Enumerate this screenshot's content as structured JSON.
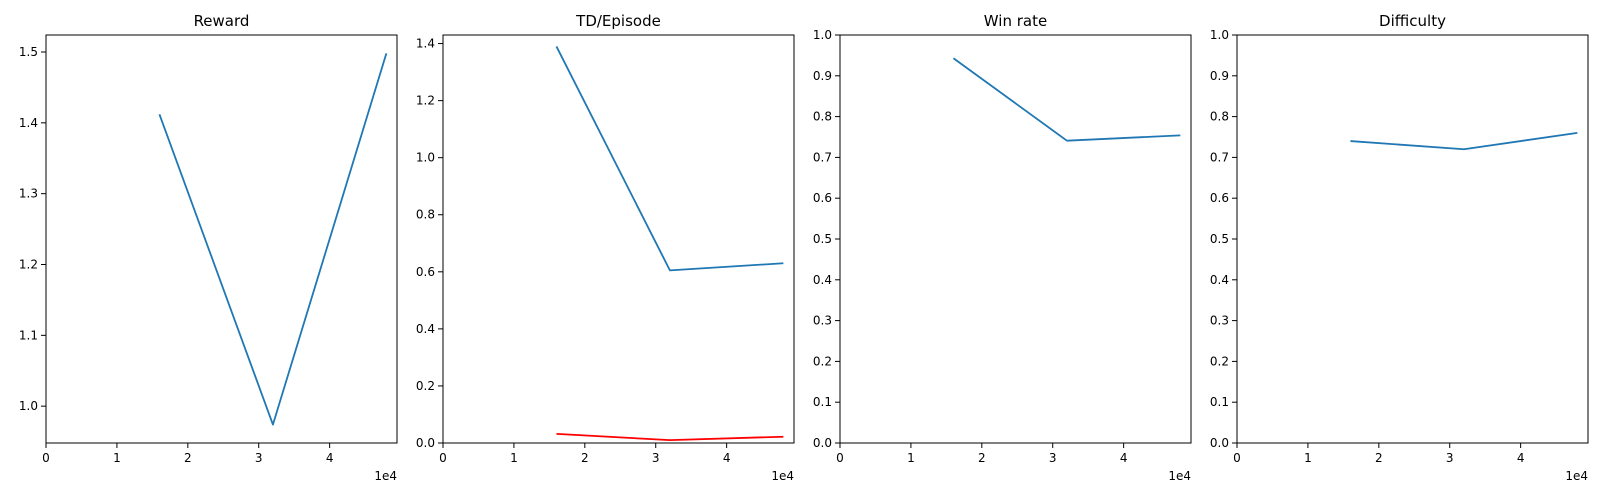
{
  "chart_data": [
    {
      "type": "line",
      "title": "Reward",
      "xlabel": "",
      "ylabel": "",
      "x_offset_label": "1e4",
      "x_scale": 10000,
      "xlim": [
        0,
        49500
      ],
      "ylim": [
        0.948,
        1.524
      ],
      "xticks": [
        0,
        10000,
        20000,
        30000,
        40000
      ],
      "xtick_labels": [
        "0",
        "1",
        "2",
        "3",
        "4"
      ],
      "yticks": [
        1.0,
        1.1,
        1.2,
        1.3,
        1.4,
        1.5
      ],
      "ytick_labels": [
        "1.0",
        "1.1",
        "1.2",
        "1.3",
        "1.4",
        "1.5"
      ],
      "grid": false,
      "series": [
        {
          "color": "#1f77b4",
          "x": [
            16000,
            32000,
            48000
          ],
          "y": [
            1.412,
            0.974,
            1.498
          ]
        }
      ]
    },
    {
      "type": "line",
      "title": "TD/Episode",
      "xlabel": "",
      "ylabel": "",
      "x_offset_label": "1e4",
      "x_scale": 10000,
      "xlim": [
        0,
        49500
      ],
      "ylim": [
        0.0,
        1.43
      ],
      "xticks": [
        0,
        10000,
        20000,
        30000,
        40000
      ],
      "xtick_labels": [
        "0",
        "1",
        "2",
        "3",
        "4"
      ],
      "yticks": [
        0.0,
        0.2,
        0.4,
        0.6,
        0.8,
        1.0,
        1.2,
        1.4
      ],
      "ytick_labels": [
        "0.0",
        "0.2",
        "0.4",
        "0.6",
        "0.8",
        "1.0",
        "1.2",
        "1.4"
      ],
      "grid": false,
      "series": [
        {
          "color": "#1f77b4",
          "x": [
            16000,
            32000,
            48000
          ],
          "y": [
            1.39,
            0.605,
            0.63
          ]
        },
        {
          "color": "#ff0000",
          "x": [
            16000,
            32000,
            48000
          ],
          "y": [
            0.032,
            0.01,
            0.022
          ]
        }
      ]
    },
    {
      "type": "line",
      "title": "Win rate",
      "xlabel": "",
      "ylabel": "",
      "x_offset_label": "1e4",
      "x_scale": 10000,
      "xlim": [
        0,
        49500
      ],
      "ylim": [
        0.0,
        1.0
      ],
      "xticks": [
        0,
        10000,
        20000,
        30000,
        40000
      ],
      "xtick_labels": [
        "0",
        "1",
        "2",
        "3",
        "4"
      ],
      "yticks": [
        0.0,
        0.1,
        0.2,
        0.3,
        0.4,
        0.5,
        0.6,
        0.7,
        0.8,
        0.9,
        1.0
      ],
      "ytick_labels": [
        "0.0",
        "0.1",
        "0.2",
        "0.3",
        "0.4",
        "0.5",
        "0.6",
        "0.7",
        "0.8",
        "0.9",
        "1.0"
      ],
      "grid": false,
      "series": [
        {
          "color": "#1f77b4",
          "x": [
            16000,
            32000,
            48000
          ],
          "y": [
            0.943,
            0.741,
            0.754
          ]
        }
      ]
    },
    {
      "type": "line",
      "title": "Difficulty",
      "xlabel": "",
      "ylabel": "",
      "x_offset_label": "1e4",
      "x_scale": 10000,
      "xlim": [
        0,
        49500
      ],
      "ylim": [
        0.0,
        1.0
      ],
      "xticks": [
        0,
        10000,
        20000,
        30000,
        40000
      ],
      "xtick_labels": [
        "0",
        "1",
        "2",
        "3",
        "4"
      ],
      "yticks": [
        0.0,
        0.1,
        0.2,
        0.3,
        0.4,
        0.5,
        0.6,
        0.7,
        0.8,
        0.9,
        1.0
      ],
      "ytick_labels": [
        "0.0",
        "0.1",
        "0.2",
        "0.3",
        "0.4",
        "0.5",
        "0.6",
        "0.7",
        "0.8",
        "0.9",
        "1.0"
      ],
      "grid": false,
      "series": [
        {
          "color": "#1f77b4",
          "x": [
            16000,
            32000,
            48000
          ],
          "y": [
            0.74,
            0.72,
            0.76
          ]
        }
      ]
    }
  ]
}
